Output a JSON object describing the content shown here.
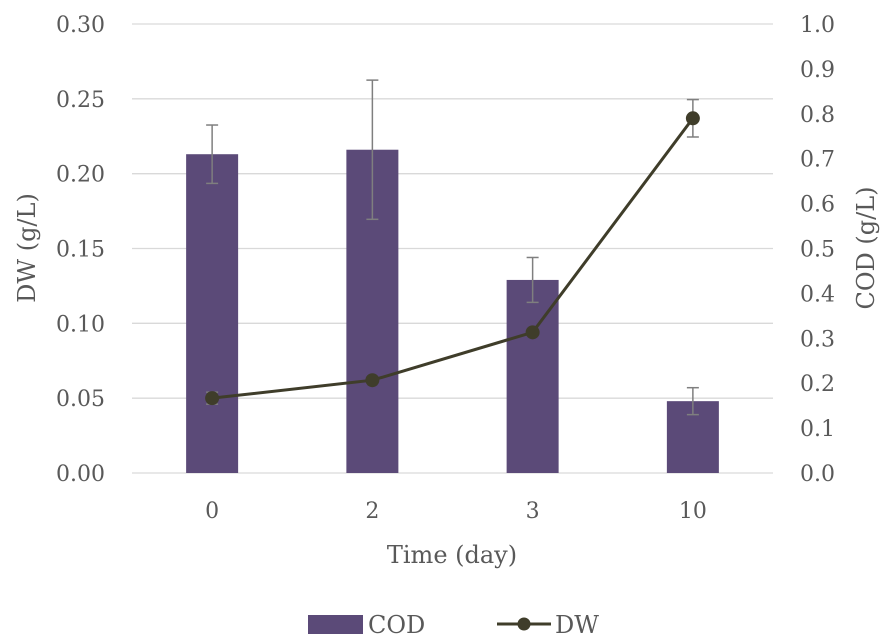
{
  "chart_data": {
    "type": "bar",
    "categories": [
      "0",
      "2",
      "3",
      "10"
    ],
    "xlabel": "Time (day)",
    "ylabel_left": "DW (g/L)",
    "ylabel_right": "COD (g/L)",
    "ylim_left": [
      0,
      0.3
    ],
    "ylim_right": [
      0,
      1.0
    ],
    "yticks_left": [
      "0.00",
      "0.05",
      "0.10",
      "0.15",
      "0.20",
      "0.25",
      "0.30"
    ],
    "yticks_right": [
      "0.0",
      "0.1",
      "0.2",
      "0.3",
      "0.4",
      "0.5",
      "0.6",
      "0.7",
      "0.8",
      "0.9",
      "1.0"
    ],
    "grid": true,
    "legend_position": "bottom",
    "series": [
      {
        "name": "COD",
        "type": "bar",
        "axis": "right",
        "color": "#5b4a78",
        "values": [
          0.71,
          0.72,
          0.43,
          0.16
        ],
        "error": [
          0.065,
          0.155,
          0.05,
          0.03
        ]
      },
      {
        "name": "DW",
        "type": "line",
        "axis": "left",
        "color": "#3f3d2a",
        "values": [
          0.05,
          0.062,
          0.094,
          0.237
        ],
        "error": [
          0.004,
          0.0,
          0.0,
          0.0125
        ]
      }
    ]
  }
}
